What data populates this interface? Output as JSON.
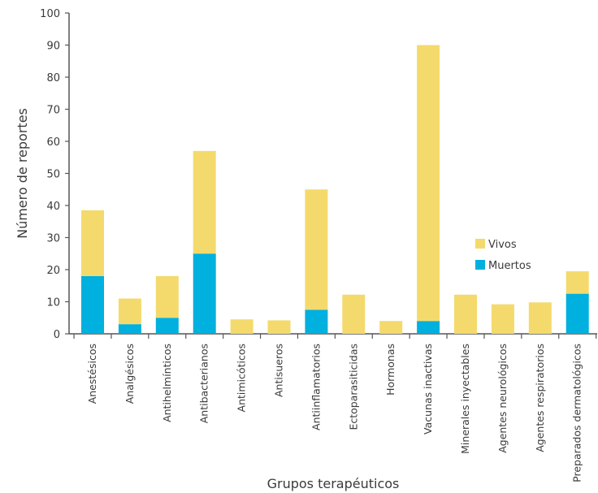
{
  "chart_data": {
    "type": "bar",
    "stacked": true,
    "title": "",
    "xlabel": "Grupos terapéuticos",
    "ylabel": "Número de reportes",
    "ylim": [
      0,
      100
    ],
    "yticks": [
      0,
      10,
      20,
      30,
      40,
      50,
      60,
      70,
      80,
      90,
      100
    ],
    "grid": false,
    "legend_position": "right",
    "categories": [
      "Anestésicos",
      "Analgésicos",
      "Antihelmínticos",
      "Antibacterianos",
      "Antimicóticos",
      "Antisueros",
      "Antiinflamatorios",
      "Ectoparasiticidas",
      "Hormonas",
      "Vacunas inactivas",
      "Minerales inyectables",
      "Agentes neurológicos",
      "Agentes respiratorios",
      "Preparados dermatológicos"
    ],
    "series": [
      {
        "name": "Muertos",
        "color": "#00b0de",
        "values": [
          18,
          3,
          5,
          25,
          0,
          0,
          7.5,
          0,
          0,
          4,
          0,
          0,
          0,
          12.5
        ]
      },
      {
        "name": "Vivos",
        "color": "#f4da6c",
        "values": [
          20.5,
          8,
          13,
          32,
          4.5,
          4.2,
          37.5,
          12.2,
          4,
          86,
          12.2,
          9.2,
          9.8,
          7
        ]
      }
    ]
  }
}
